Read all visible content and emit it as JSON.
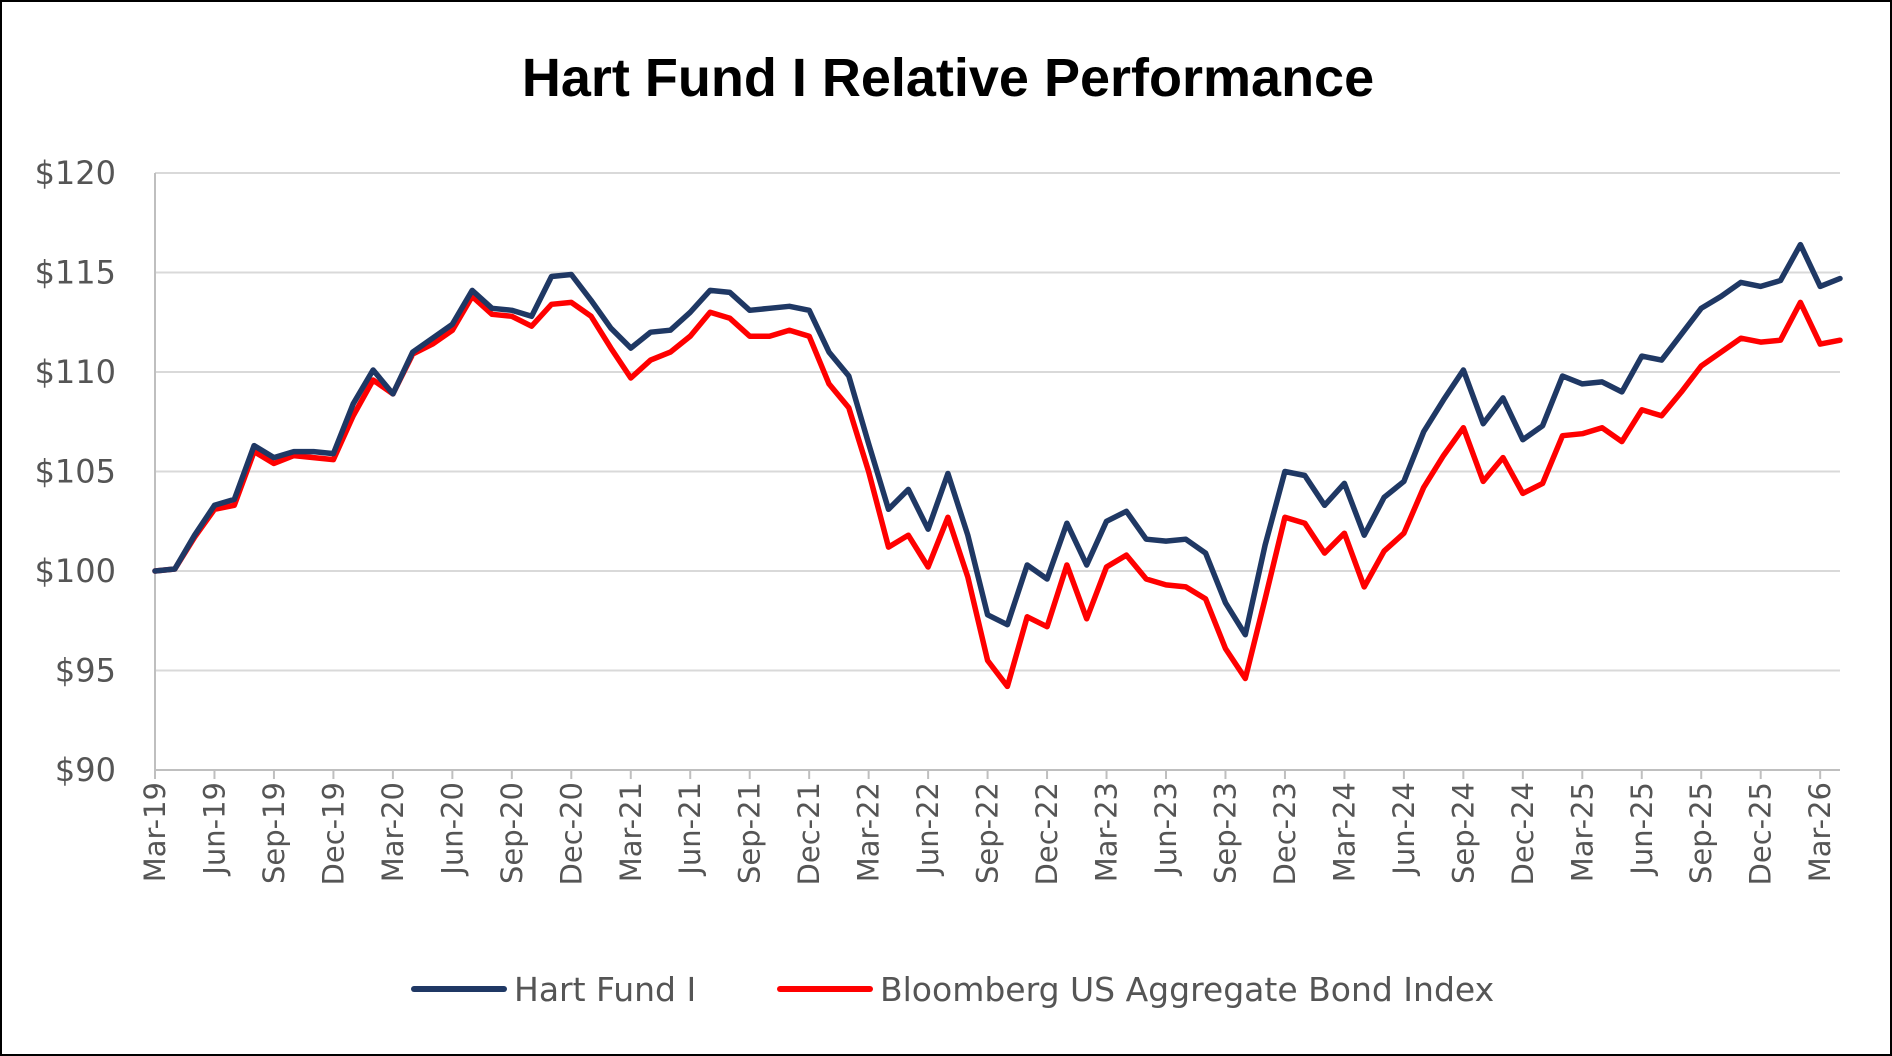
{
  "chart_data": {
    "type": "line",
    "title": "Hart Fund I Relative Performance",
    "xlabel": "",
    "ylabel": "",
    "ylim": [
      90,
      120
    ],
    "yticks": [
      90,
      95,
      100,
      105,
      110,
      115,
      120
    ],
    "ytick_labels": [
      "$90",
      "$95",
      "$100",
      "$105",
      "$110",
      "$115",
      "$120"
    ],
    "xtick_labels": [
      "Mar-19",
      "Jun-19",
      "Sep-19",
      "Dec-19",
      "Mar-20",
      "Jun-20",
      "Sep-20",
      "Dec-20",
      "Mar-21",
      "Jun-21",
      "Sep-21",
      "Dec-21",
      "Mar-22",
      "Jun-22",
      "Sep-22",
      "Dec-22",
      "Mar-23",
      "Jun-23",
      "Sep-23",
      "Dec-23",
      "Mar-24",
      "Jun-24",
      "Sep-24",
      "Dec-24",
      "Mar-25",
      "Jun-25",
      "Sep-25",
      "Dec-25",
      "Mar-26"
    ],
    "x": [
      "Mar-19",
      "Apr-19",
      "May-19",
      "Jun-19",
      "Jul-19",
      "Aug-19",
      "Sep-19",
      "Oct-19",
      "Nov-19",
      "Dec-19",
      "Jan-20",
      "Feb-20",
      "Mar-20",
      "Apr-20",
      "May-20",
      "Jun-20",
      "Jul-20",
      "Aug-20",
      "Sep-20",
      "Oct-20",
      "Nov-20",
      "Dec-20",
      "Jan-21",
      "Feb-21",
      "Mar-21",
      "Apr-21",
      "May-21",
      "Jun-21",
      "Jul-21",
      "Aug-21",
      "Sep-21",
      "Oct-21",
      "Nov-21",
      "Dec-21",
      "Jan-22",
      "Feb-22",
      "Mar-22",
      "Apr-22",
      "May-22",
      "Jun-22",
      "Jul-22",
      "Aug-22",
      "Sep-22",
      "Oct-22",
      "Nov-22",
      "Dec-22",
      "Jan-23",
      "Feb-23",
      "Mar-23",
      "Apr-23",
      "May-23",
      "Jun-23",
      "Jul-23",
      "Aug-23",
      "Sep-23",
      "Oct-23",
      "Nov-23",
      "Dec-23",
      "Jan-24",
      "Feb-24",
      "Mar-24",
      "Apr-24",
      "May-24",
      "Jun-24",
      "Jul-24",
      "Aug-24",
      "Sep-24",
      "Oct-24",
      "Nov-24",
      "Dec-24",
      "Jan-25",
      "Feb-25",
      "Mar-25",
      "Apr-25",
      "May-25",
      "Jun-25",
      "Jul-25",
      "Aug-25",
      "Sep-25",
      "Oct-25",
      "Nov-25",
      "Dec-25",
      "Jan-26",
      "Feb-26",
      "Mar-26",
      "Apr-26"
    ],
    "series": [
      {
        "name": "Hart Fund I",
        "color": "#1f3864",
        "values": [
          100.0,
          100.1,
          101.8,
          103.3,
          103.6,
          106.3,
          105.7,
          106.0,
          106.0,
          105.9,
          108.4,
          110.1,
          108.9,
          111.0,
          111.7,
          112.4,
          114.1,
          113.2,
          113.1,
          112.8,
          114.8,
          114.9,
          113.6,
          112.2,
          111.2,
          112.0,
          112.1,
          113.0,
          114.1,
          114.0,
          113.1,
          113.2,
          113.3,
          113.1,
          111.0,
          109.8,
          106.4,
          103.1,
          104.1,
          102.1,
          104.9,
          101.8,
          97.8,
          97.3,
          100.3,
          99.6,
          102.4,
          100.3,
          102.5,
          103.0,
          101.6,
          101.5,
          101.6,
          100.9,
          98.4,
          96.8,
          101.3,
          105.0,
          104.8,
          103.3,
          104.4,
          101.8,
          103.7,
          104.5,
          107.0,
          108.6,
          110.1,
          107.4,
          108.7,
          106.6,
          107.3,
          109.8,
          109.4,
          109.5,
          109.0,
          110.8,
          110.6,
          111.9,
          113.2,
          113.8,
          114.5,
          114.3,
          114.6,
          116.4,
          114.3,
          114.7
        ]
      },
      {
        "name": "Bloomberg US Aggregate Bond Index",
        "color": "#ff0000",
        "values": [
          100.0,
          100.1,
          101.7,
          103.1,
          103.3,
          106.0,
          105.4,
          105.8,
          105.7,
          105.6,
          107.8,
          109.6,
          108.9,
          110.9,
          111.4,
          112.1,
          113.8,
          112.9,
          112.8,
          112.3,
          113.4,
          113.5,
          112.8,
          111.2,
          109.7,
          110.6,
          111.0,
          111.8,
          113.0,
          112.7,
          111.8,
          111.8,
          112.1,
          111.8,
          109.4,
          108.2,
          105.0,
          101.2,
          101.8,
          100.2,
          102.7,
          99.7,
          95.5,
          94.2,
          97.7,
          97.2,
          100.3,
          97.6,
          100.2,
          100.8,
          99.6,
          99.3,
          99.2,
          98.6,
          96.1,
          94.6,
          98.6,
          102.7,
          102.4,
          100.9,
          101.9,
          99.2,
          101.0,
          101.9,
          104.2,
          105.8,
          107.2,
          104.5,
          105.7,
          103.9,
          104.4,
          106.8,
          106.9,
          107.2,
          106.5,
          108.1,
          107.8,
          109.0,
          110.3,
          111.0,
          111.7,
          111.5,
          111.6,
          113.5,
          111.4,
          111.6
        ]
      }
    ],
    "legend_placement": "bottom-center",
    "grid": true
  }
}
